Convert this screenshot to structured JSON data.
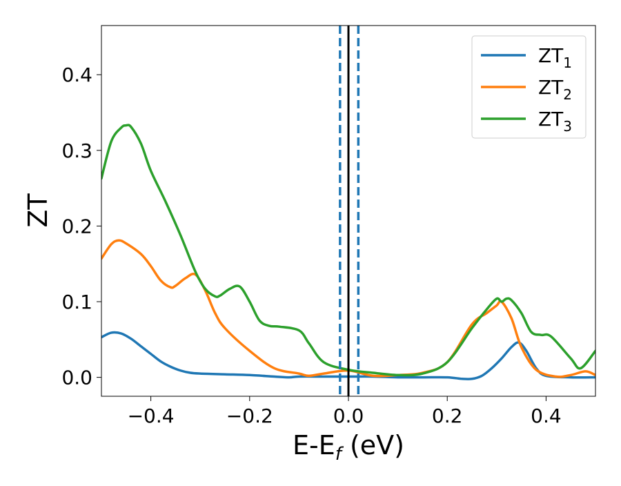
{
  "chart_data": {
    "type": "line",
    "title": "",
    "xlabel": "E-E_f (eV)",
    "xlabel_base": "E-E",
    "xlabel_sub": "f",
    "xlabel_tail": " (eV)",
    "ylabel": "ZT",
    "xlim": [
      -0.5,
      0.5
    ],
    "ylim": [
      -0.025,
      0.465
    ],
    "x_ticks": [
      -0.4,
      -0.2,
      0.0,
      0.2,
      0.4
    ],
    "x_tick_labels": [
      "−0.4",
      "−0.2",
      "0.0",
      "0.2",
      "0.4"
    ],
    "y_ticks": [
      0.0,
      0.1,
      0.2,
      0.3,
      0.4
    ],
    "y_tick_labels": [
      "0.0",
      "0.1",
      "0.2",
      "0.3",
      "0.4"
    ],
    "grid": false,
    "legend_position": "top-right",
    "vertical_lines": [
      {
        "x": 0.0,
        "style": "solid",
        "color": "#000000"
      },
      {
        "x": -0.017,
        "style": "dashed",
        "color": "#1f77b4"
      },
      {
        "x": 0.02,
        "style": "dashed",
        "color": "#1f77b4"
      }
    ],
    "series": [
      {
        "name": "ZT1",
        "label_base": "ZT",
        "label_sub": "1",
        "color": "#1f77b4",
        "x": [
          -0.5,
          -0.48,
          -0.46,
          -0.44,
          -0.42,
          -0.4,
          -0.38,
          -0.36,
          -0.34,
          -0.32,
          -0.3,
          -0.25,
          -0.2,
          -0.15,
          -0.12,
          -0.1,
          -0.05,
          0.0,
          0.05,
          0.1,
          0.15,
          0.2,
          0.23,
          0.25,
          0.27,
          0.29,
          0.31,
          0.33,
          0.345,
          0.36,
          0.38,
          0.4,
          0.45,
          0.5
        ],
        "y": [
          0.053,
          0.059,
          0.058,
          0.051,
          0.041,
          0.031,
          0.021,
          0.014,
          0.009,
          0.006,
          0.005,
          0.004,
          0.003,
          0.001,
          0.0,
          0.001,
          0.001,
          0.001,
          0.001,
          0.0,
          0.0,
          0.0,
          -0.002,
          -0.002,
          0.002,
          0.012,
          0.025,
          0.04,
          0.046,
          0.035,
          0.012,
          0.002,
          0.0,
          0.0
        ]
      },
      {
        "name": "ZT2",
        "label_base": "ZT",
        "label_sub": "2",
        "color": "#ff7f0e",
        "x": [
          -0.5,
          -0.48,
          -0.465,
          -0.45,
          -0.42,
          -0.4,
          -0.38,
          -0.36,
          -0.35,
          -0.33,
          -0.31,
          -0.29,
          -0.27,
          -0.25,
          -0.2,
          -0.15,
          -0.1,
          -0.08,
          -0.05,
          0.0,
          0.05,
          0.1,
          0.15,
          0.2,
          0.25,
          0.28,
          0.3,
          0.31,
          0.33,
          0.35,
          0.38,
          0.42,
          0.45,
          0.48,
          0.5
        ],
        "y": [
          0.157,
          0.176,
          0.181,
          0.177,
          0.163,
          0.147,
          0.128,
          0.119,
          0.121,
          0.131,
          0.136,
          0.115,
          0.085,
          0.065,
          0.035,
          0.012,
          0.005,
          0.002,
          0.005,
          0.009,
          0.002,
          0.003,
          0.006,
          0.02,
          0.07,
          0.085,
          0.095,
          0.1,
          0.078,
          0.04,
          0.01,
          0.001,
          0.003,
          0.008,
          0.003
        ]
      },
      {
        "name": "ZT3",
        "label_base": "ZT",
        "label_sub": "3",
        "color": "#2ca02c",
        "x": [
          -0.5,
          -0.48,
          -0.46,
          -0.45,
          -0.44,
          -0.42,
          -0.4,
          -0.37,
          -0.34,
          -0.31,
          -0.29,
          -0.27,
          -0.26,
          -0.24,
          -0.22,
          -0.2,
          -0.18,
          -0.16,
          -0.14,
          -0.1,
          -0.08,
          -0.05,
          0.0,
          0.05,
          0.1,
          0.15,
          0.2,
          0.25,
          0.28,
          0.3,
          0.31,
          0.32,
          0.33,
          0.35,
          0.37,
          0.39,
          0.41,
          0.45,
          0.47,
          0.5
        ],
        "y": [
          0.263,
          0.312,
          0.33,
          0.333,
          0.331,
          0.309,
          0.273,
          0.232,
          0.188,
          0.14,
          0.117,
          0.107,
          0.108,
          0.117,
          0.12,
          0.1,
          0.075,
          0.068,
          0.067,
          0.062,
          0.045,
          0.02,
          0.01,
          0.006,
          0.003,
          0.005,
          0.02,
          0.065,
          0.09,
          0.104,
          0.1,
          0.104,
          0.102,
          0.085,
          0.06,
          0.056,
          0.054,
          0.025,
          0.012,
          0.035
        ]
      }
    ]
  }
}
